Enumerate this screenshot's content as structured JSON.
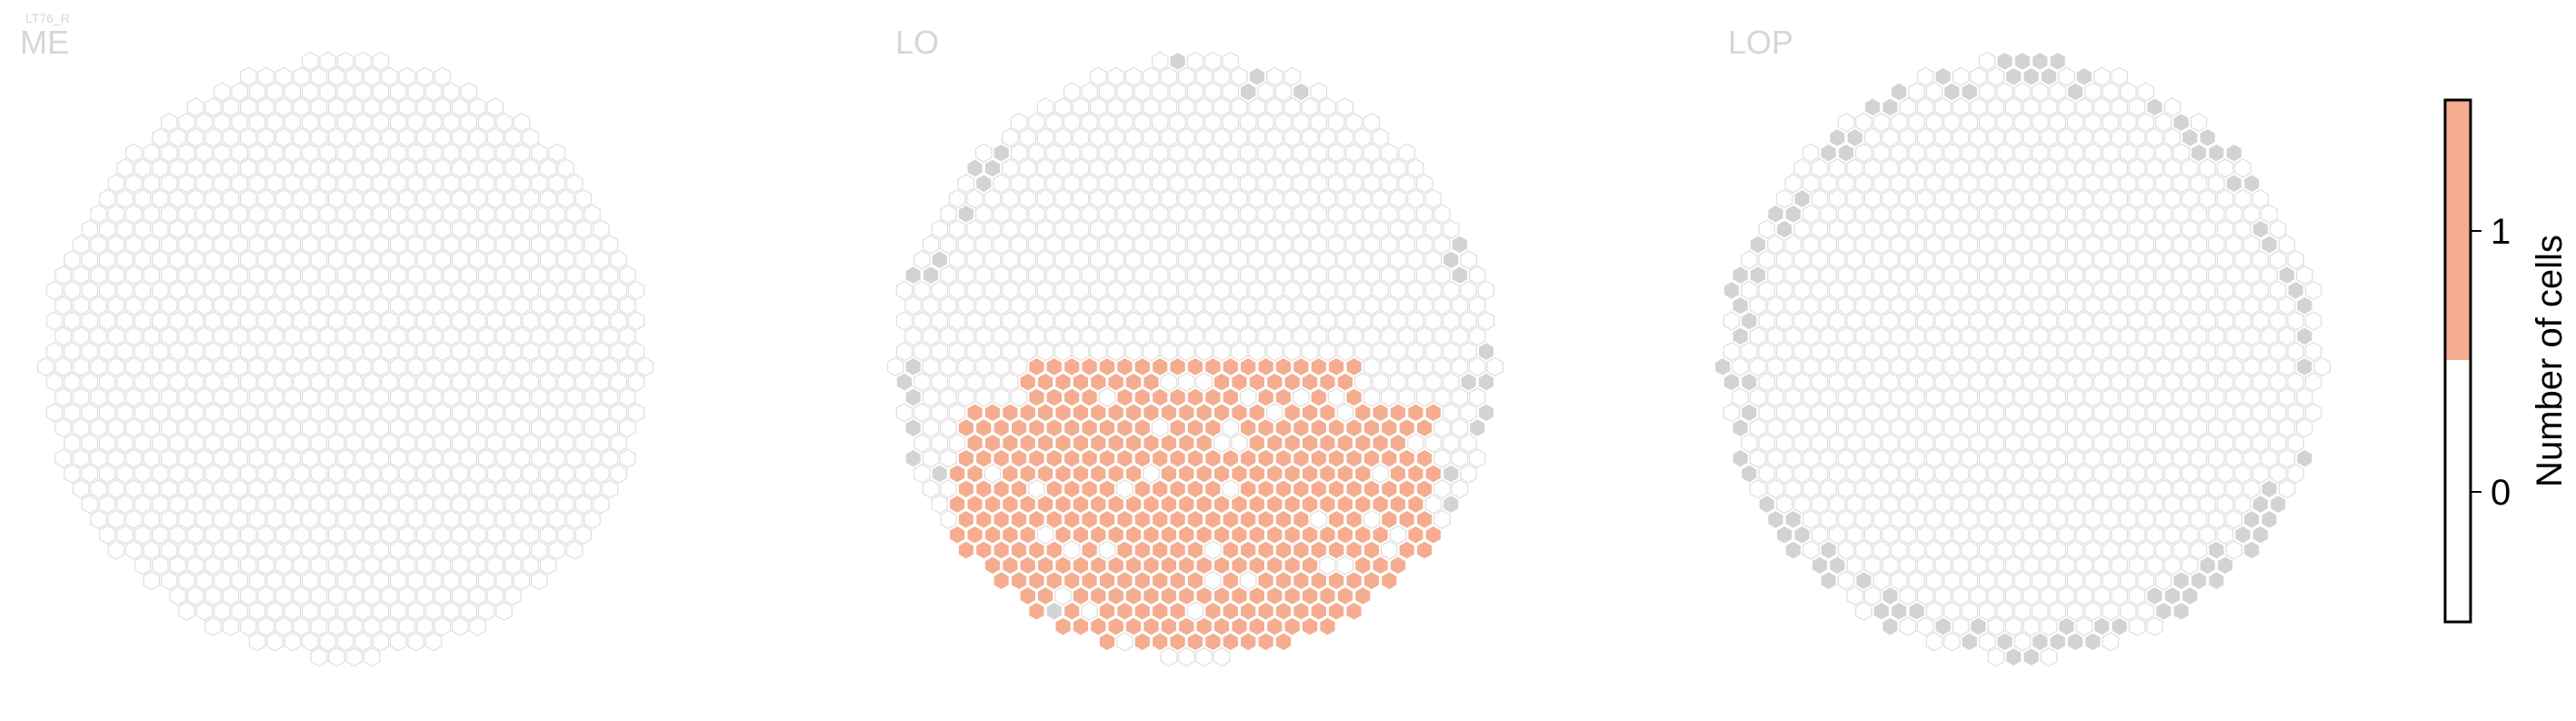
{
  "figure": {
    "cell_type": "LT76_R"
  },
  "chart_data": [
    {
      "type": "heatmap",
      "title": "ME",
      "shape": "hexagonal column grid",
      "grid_rows": 45,
      "grid_cols": 37,
      "cells": "all columns empty; no cells in this neuropil",
      "count_0_color": "#ffffff",
      "present_color": "#f5ac8f",
      "edge_color": "#dedede"
    },
    {
      "type": "heatmap",
      "title": "LO",
      "shape": "hexagonal column grid",
      "grid_rows": 45,
      "grid_cols": 37,
      "cells": "count 1 in columns forming the lower-central region of the lobula; count 0 elsewhere",
      "count_1_color": "#f5ac8f",
      "count_0_color": "#ffffff",
      "no_data_color": "#d3d3d3",
      "edge_color": "#dedede"
    },
    {
      "type": "heatmap",
      "title": "LOP",
      "shape": "hexagonal column grid",
      "grid_rows": 45,
      "grid_cols": 37,
      "cells": "count 0 in all columns; grey marked columns along the rim",
      "count_0_color": "#ffffff",
      "no_data_color": "#d3d3d3",
      "edge_color": "#dedede"
    }
  ],
  "colorbar": {
    "label": "Number of cells",
    "ticks": [
      "1",
      "0"
    ],
    "tick_values": [
      1,
      0
    ],
    "range": [
      -0.5,
      1.5
    ],
    "colors": [
      "#ffffff",
      "#f5ac8f"
    ]
  }
}
